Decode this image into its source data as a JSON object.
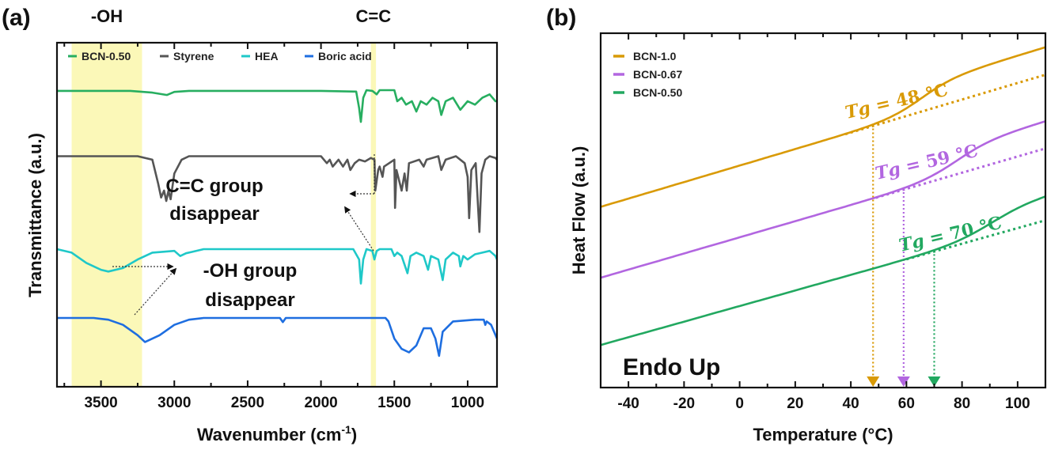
{
  "chart_data": [
    {
      "panel": "(a)",
      "type": "line",
      "title": "",
      "xlabel": "Wavenumber (cm⁻¹)",
      "ylabel": "Transmittance (a.u.)",
      "xlim": [
        3800,
        800
      ],
      "x_reversed": true,
      "xticks": [
        3500,
        3000,
        2500,
        2000,
        1500,
        1000
      ],
      "grid": false,
      "legend_position": "top",
      "highlight_bands": [
        {
          "label": "-OH",
          "range": [
            3700,
            3220
          ],
          "color": "#fbf8b8"
        },
        {
          "label": "C=C",
          "range": [
            1660,
            1625
          ],
          "color": "#fbf8b8"
        }
      ],
      "series": [
        {
          "name": "BCN-0.50",
          "color": "#27ae60",
          "offset": 0.86,
          "points": [
            [
              3800,
              0
            ],
            [
              3300,
              0
            ],
            [
              3150,
              -0.005
            ],
            [
              3050,
              -0.012
            ],
            [
              3000,
              -0.003
            ],
            [
              2900,
              0
            ],
            [
              2000,
              0
            ],
            [
              1760,
              -0.002
            ],
            [
              1740,
              -0.05
            ],
            [
              1728,
              -0.09
            ],
            [
              1712,
              -0.02
            ],
            [
              1690,
              0.002
            ],
            [
              1650,
              0
            ],
            [
              1620,
              -0.01
            ],
            [
              1600,
              0.002
            ],
            [
              1500,
              0.002
            ],
            [
              1480,
              -0.03
            ],
            [
              1450,
              -0.02
            ],
            [
              1420,
              -0.04
            ],
            [
              1380,
              -0.03
            ],
            [
              1350,
              -0.06
            ],
            [
              1320,
              -0.03
            ],
            [
              1280,
              -0.04
            ],
            [
              1240,
              -0.02
            ],
            [
              1200,
              -0.03
            ],
            [
              1180,
              -0.07
            ],
            [
              1150,
              -0.03
            ],
            [
              1100,
              -0.02
            ],
            [
              1050,
              -0.055
            ],
            [
              1000,
              -0.03
            ],
            [
              950,
              -0.04
            ],
            [
              900,
              -0.02
            ],
            [
              850,
              -0.01
            ],
            [
              810,
              -0.03
            ],
            [
              800,
              -0.03
            ]
          ]
        },
        {
          "name": "Styrene",
          "color": "#555555",
          "offset": 0.67,
          "points": [
            [
              3800,
              0
            ],
            [
              3250,
              0
            ],
            [
              3150,
              -0.01
            ],
            [
              3110,
              -0.08
            ],
            [
              3090,
              -0.12
            ],
            [
              3070,
              -0.1
            ],
            [
              3055,
              -0.13
            ],
            [
              3040,
              -0.1
            ],
            [
              3025,
              -0.125
            ],
            [
              3000,
              -0.05
            ],
            [
              2950,
              -0.01
            ],
            [
              2900,
              0
            ],
            [
              2000,
              0
            ],
            [
              1960,
              -0.02
            ],
            [
              1940,
              -0.01
            ],
            [
              1920,
              -0.03
            ],
            [
              1880,
              -0.01
            ],
            [
              1850,
              -0.03
            ],
            [
              1820,
              -0.01
            ],
            [
              1800,
              -0.04
            ],
            [
              1770,
              -0.02
            ],
            [
              1740,
              -0.01
            ],
            [
              1700,
              -0.015
            ],
            [
              1660,
              -0.005
            ],
            [
              1635,
              -0.01
            ],
            [
              1630,
              -0.1
            ],
            [
              1610,
              -0.04
            ],
            [
              1600,
              -0.03
            ],
            [
              1580,
              -0.06
            ],
            [
              1570,
              -0.03
            ],
            [
              1500,
              -0.01
            ],
            [
              1495,
              -0.15
            ],
            [
              1485,
              -0.04
            ],
            [
              1450,
              -0.1
            ],
            [
              1430,
              -0.05
            ],
            [
              1415,
              -0.1
            ],
            [
              1400,
              -0.02
            ],
            [
              1330,
              -0.01
            ],
            [
              1300,
              -0.03
            ],
            [
              1280,
              -0.01
            ],
            [
              1200,
              0
            ],
            [
              1180,
              -0.04
            ],
            [
              1150,
              -0.01
            ],
            [
              1080,
              0
            ],
            [
              1020,
              -0.02
            ],
            [
              1000,
              -0.06
            ],
            [
              990,
              -0.18
            ],
            [
              975,
              -0.04
            ],
            [
              945,
              -0.02
            ],
            [
              920,
              -0.22
            ],
            [
              905,
              -0.05
            ],
            [
              880,
              -0.01
            ],
            [
              850,
              0
            ],
            [
              810,
              -0.005
            ],
            [
              800,
              -0.01
            ]
          ]
        },
        {
          "name": "HEA",
          "color": "#1fc8c8",
          "offset": 0.4,
          "points": [
            [
              3800,
              0
            ],
            [
              3700,
              -0.01
            ],
            [
              3600,
              -0.04
            ],
            [
              3500,
              -0.06
            ],
            [
              3450,
              -0.065
            ],
            [
              3350,
              -0.055
            ],
            [
              3250,
              -0.03
            ],
            [
              3150,
              -0.01
            ],
            [
              3000,
              -0.005
            ],
            [
              2960,
              -0.02
            ],
            [
              2920,
              -0.012
            ],
            [
              2880,
              -0.008
            ],
            [
              2800,
              0
            ],
            [
              1780,
              0
            ],
            [
              1740,
              -0.03
            ],
            [
              1728,
              -0.1
            ],
            [
              1712,
              -0.03
            ],
            [
              1690,
              0
            ],
            [
              1650,
              -0.005
            ],
            [
              1636,
              -0.03
            ],
            [
              1620,
              -0.005
            ],
            [
              1600,
              0
            ],
            [
              1520,
              0
            ],
            [
              1500,
              -0.02
            ],
            [
              1480,
              -0.01
            ],
            [
              1450,
              -0.02
            ],
            [
              1410,
              -0.07
            ],
            [
              1390,
              -0.02
            ],
            [
              1350,
              -0.01
            ],
            [
              1300,
              -0.02
            ],
            [
              1270,
              -0.06
            ],
            [
              1250,
              -0.02
            ],
            [
              1200,
              -0.03
            ],
            [
              1170,
              -0.09
            ],
            [
              1150,
              -0.03
            ],
            [
              1100,
              -0.01
            ],
            [
              1060,
              -0.02
            ],
            [
              1050,
              -0.05
            ],
            [
              1030,
              -0.02
            ],
            [
              1000,
              -0.03
            ],
            [
              950,
              -0.015
            ],
            [
              900,
              -0.01
            ],
            [
              850,
              -0.005
            ],
            [
              810,
              -0.02
            ],
            [
              800,
              -0.03
            ]
          ]
        },
        {
          "name": "Boric acid",
          "color": "#1e6ee0",
          "offset": 0.2,
          "points": [
            [
              3800,
              0
            ],
            [
              3550,
              0
            ],
            [
              3450,
              -0.005
            ],
            [
              3350,
              -0.02
            ],
            [
              3250,
              -0.05
            ],
            [
              3200,
              -0.07
            ],
            [
              3100,
              -0.05
            ],
            [
              3000,
              -0.02
            ],
            [
              2900,
              -0.005
            ],
            [
              2800,
              0
            ],
            [
              2280,
              0
            ],
            [
              2260,
              -0.012
            ],
            [
              2240,
              0
            ],
            [
              1700,
              0
            ],
            [
              1560,
              0
            ],
            [
              1540,
              -0.01
            ],
            [
              1500,
              -0.06
            ],
            [
              1450,
              -0.09
            ],
            [
              1400,
              -0.1
            ],
            [
              1350,
              -0.08
            ],
            [
              1300,
              -0.03
            ],
            [
              1250,
              -0.03
            ],
            [
              1220,
              -0.06
            ],
            [
              1195,
              -0.11
            ],
            [
              1170,
              -0.04
            ],
            [
              1100,
              -0.01
            ],
            [
              950,
              -0.005
            ],
            [
              890,
              -0.005
            ],
            [
              880,
              -0.02
            ],
            [
              870,
              -0.01
            ],
            [
              840,
              -0.02
            ],
            [
              800,
              -0.06
            ]
          ]
        }
      ],
      "annotations": [
        {
          "text_lines": [
            "C=C group",
            "disappear"
          ]
        },
        {
          "text_lines": [
            "-OH group",
            "disappear"
          ]
        }
      ]
    },
    {
      "panel": "(b)",
      "type": "line",
      "title": "",
      "xlabel": "Temperature (°C)",
      "ylabel": "Heat Flow (a.u.)",
      "xlim": [
        -50,
        110
      ],
      "xticks": [
        -40,
        -20,
        0,
        20,
        40,
        60,
        80,
        100
      ],
      "grid": false,
      "legend_position": "top-left",
      "annotation_text": "Endo Up",
      "series": [
        {
          "name": "BCN-1.0",
          "color": "#d99a06",
          "Tg": 48,
          "tg_label": "Tg = 48 °C",
          "start": 0.51,
          "slope": 0.00233,
          "step": 0.075,
          "width": 11
        },
        {
          "name": "BCN-0.67",
          "color": "#b266e0",
          "Tg": 59,
          "tg_label": "Tg = 59 °C",
          "start": 0.31,
          "slope": 0.00228,
          "step": 0.075,
          "width": 12
        },
        {
          "name": "BCN-0.50",
          "color": "#22a860",
          "Tg": 70,
          "tg_label": "Tg = 70 °C",
          "start": 0.12,
          "slope": 0.0022,
          "step": 0.07,
          "width": 13
        }
      ]
    }
  ]
}
